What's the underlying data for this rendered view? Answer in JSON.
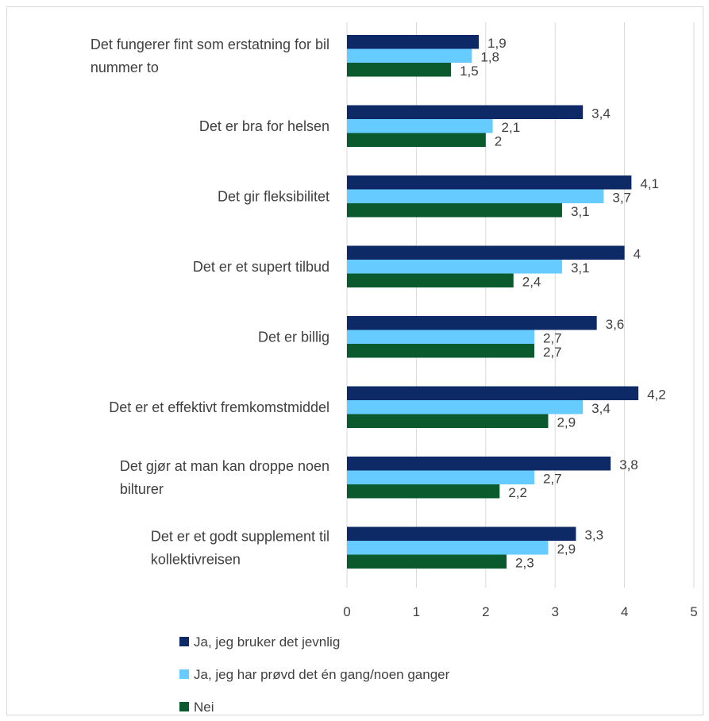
{
  "chart_data": {
    "type": "bar",
    "orientation": "horizontal",
    "categories": [
      [
        "Det fungerer fint som erstatning for bil",
        "nummer to"
      ],
      [
        "Det er bra for helsen"
      ],
      [
        "Det gir fleksibilitet"
      ],
      [
        "Det er et supert tilbud"
      ],
      [
        "Det er billig"
      ],
      [
        "Det er et effektivt fremkomstmiddel"
      ],
      [
        "Det gjør at man kan droppe noen",
        "bilturer"
      ],
      [
        "Det er et godt supplement til",
        "kollektivreisen"
      ]
    ],
    "series": [
      {
        "name": "Ja, jeg bruker det jevnlig",
        "color": "#0d2a66",
        "values": [
          1.9,
          3.4,
          4.1,
          4.0,
          3.6,
          4.2,
          3.8,
          3.3
        ],
        "labels": [
          "1,9",
          "3,4",
          "4,1",
          "4",
          "3,6",
          "4,2",
          "3,8",
          "3,3"
        ]
      },
      {
        "name": "Ja, jeg har prøvd det én gang/noen ganger",
        "color": "#66ccff",
        "values": [
          1.8,
          2.1,
          3.7,
          3.1,
          2.7,
          3.4,
          2.7,
          2.9
        ],
        "labels": [
          "1,8",
          "2,1",
          "3,7",
          "3,1",
          "2,7",
          "3,4",
          "2,7",
          "2,9"
        ]
      },
      {
        "name": "Nei",
        "color": "#0b5a2e",
        "values": [
          1.5,
          2.0,
          3.1,
          2.4,
          2.7,
          2.9,
          2.2,
          2.3
        ],
        "labels": [
          "1,5",
          "2",
          "3,1",
          "2,4",
          "2,7",
          "2,9",
          "2,2",
          "2,3"
        ]
      }
    ],
    "xlim": [
      0,
      5
    ],
    "x_ticks": [
      "0",
      "1",
      "2",
      "3",
      "4",
      "5"
    ],
    "grid": "vertical",
    "grid_color": "#d9d9d9",
    "legend_position": "bottom"
  }
}
